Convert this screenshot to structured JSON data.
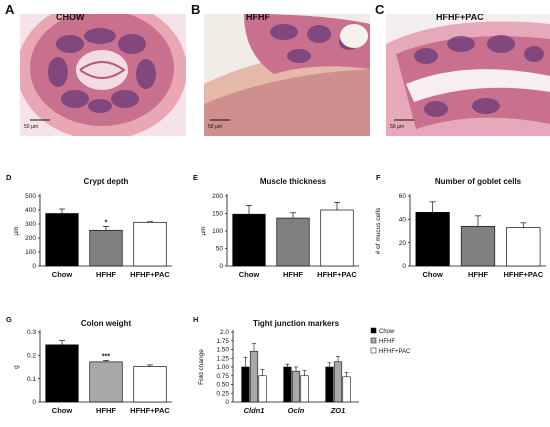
{
  "panels": {
    "A": {
      "letter": "A",
      "label": "CHOW",
      "scale": "50 µm"
    },
    "B": {
      "letter": "B",
      "label": "HFHF",
      "scale": "50 µm"
    },
    "C": {
      "letter": "C",
      "label": "HFHF+PAC",
      "scale": "50 µm"
    }
  },
  "colors": {
    "chow": "#000000",
    "hfhf": "#808080",
    "hfhf_light": "#a9a9a9",
    "pac": "#ffffff",
    "tissue_pink": "#c9708f",
    "tissue_purple": "#6b3a78",
    "muscle": "#e9a7b3"
  },
  "chart_data": [
    {
      "letter": "D",
      "type": "bar",
      "title": "Crypt depth",
      "ylabel": "µm",
      "ylim": [
        0,
        500
      ],
      "yticks": [
        "0",
        "100",
        "200",
        "300",
        "400",
        "500"
      ],
      "categories": [
        "Chow",
        "HFHF",
        "HFHF+PAC"
      ],
      "values": [
        375,
        255,
        312
      ],
      "errors": [
        32,
        28,
        4
      ],
      "colors": [
        "#000000",
        "#808080",
        "#ffffff"
      ],
      "annotations": [
        {
          "category": "HFHF",
          "text": "*"
        }
      ]
    },
    {
      "letter": "E",
      "type": "bar",
      "title": "Muscle thickness",
      "ylabel": "µm",
      "ylim": [
        0,
        200
      ],
      "yticks": [
        "0",
        "50",
        "100",
        "150",
        "200"
      ],
      "categories": [
        "Chow",
        "HFHF",
        "HFHF+PAC"
      ],
      "values": [
        148,
        137,
        160
      ],
      "errors": [
        25,
        15,
        22
      ],
      "colors": [
        "#000000",
        "#808080",
        "#ffffff"
      ],
      "annotations": []
    },
    {
      "letter": "F",
      "type": "bar",
      "title": "Number of goblet cells",
      "ylabel": "# of mucus cells",
      "ylim": [
        0,
        60
      ],
      "yticks": [
        "0",
        "20",
        "40",
        "60"
      ],
      "categories": [
        "Chow",
        "HFHF",
        "HFHF+PAC"
      ],
      "values": [
        46,
        34,
        33
      ],
      "errors": [
        9,
        9,
        4
      ],
      "colors": [
        "#000000",
        "#808080",
        "#ffffff"
      ],
      "annotations": []
    },
    {
      "letter": "G",
      "type": "bar",
      "title": "Colon weight",
      "ylabel": "g",
      "ylim": [
        0,
        0.3
      ],
      "yticks": [
        "0",
        "0.1",
        "0.2",
        "0.3"
      ],
      "categories": [
        "Chow",
        "HFHF",
        "HFHF+PAC"
      ],
      "values": [
        0.245,
        0.172,
        0.152
      ],
      "errors": [
        0.018,
        0.006,
        0.007
      ],
      "colors": [
        "#000000",
        "#a9a9a9",
        "#ffffff"
      ],
      "annotations": [
        {
          "category": "HFHF",
          "text": "***"
        }
      ]
    },
    {
      "letter": "H",
      "type": "bar",
      "title": "Tight junction markers",
      "ylabel": "Fold change",
      "ylim": [
        0,
        2.0
      ],
      "yticks": [
        "0",
        "0.25",
        "0.50",
        "0.75",
        "1.00",
        "1.25",
        "1.50",
        "1.75",
        "2.0"
      ],
      "categories": [
        "Cldn1",
        "Ocln",
        "ZO1"
      ],
      "legend": "top-right",
      "series": [
        {
          "name": "Chow",
          "values": [
            1.0,
            1.0,
            1.0
          ],
          "errors": [
            0.28,
            0.08,
            0.12
          ],
          "color": "#000000"
        },
        {
          "name": "HFHF",
          "values": [
            1.45,
            0.88,
            1.15
          ],
          "errors": [
            0.22,
            0.12,
            0.15
          ],
          "color": "#a9a9a9"
        },
        {
          "name": "HFHF+PAC",
          "values": [
            0.75,
            0.75,
            0.72
          ],
          "errors": [
            0.18,
            0.15,
            0.13
          ],
          "color": "#ffffff"
        }
      ]
    }
  ]
}
